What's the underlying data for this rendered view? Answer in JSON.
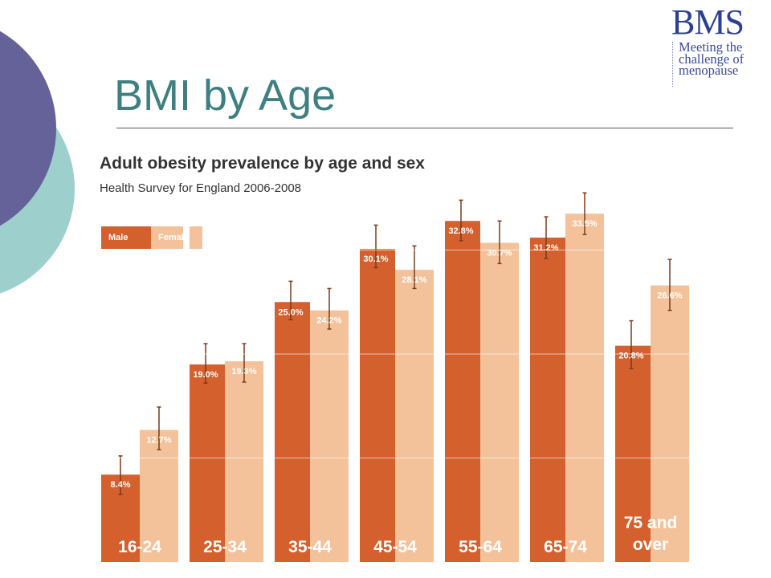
{
  "slide": {
    "title": "BMI by Age"
  },
  "logo": {
    "text": "BMS",
    "tagline": [
      "Meeting the",
      "challenge of",
      "menopause"
    ]
  },
  "colors": {
    "title": "#3f7f82",
    "male": "#d4602d",
    "female": "#f3c29b",
    "error_bar": "#7a3a18",
    "decor_purple": "#656199",
    "decor_teal": "#9dcfcd"
  },
  "chart_data": {
    "type": "bar",
    "title": "Adult obesity prevalence by age and sex",
    "subtitle": "Health Survey for England 2006-2008",
    "legend": [
      "Male",
      "Female"
    ],
    "legend_position": "top-left",
    "categories": [
      "16-24",
      "25-34",
      "35-44",
      "45-54",
      "55-64",
      "65-74",
      "75 and over"
    ],
    "series": [
      {
        "name": "Male",
        "values": [
          8.4,
          19.0,
          25.0,
          30.1,
          32.8,
          31.2,
          20.8
        ],
        "labels": [
          "8.4%",
          "19.0%",
          "25.0%",
          "30.1%",
          "32.8%",
          "31.2%",
          "20.8%"
        ],
        "error_low": [
          6.5,
          17.2,
          23.3,
          28.3,
          30.9,
          29.2,
          18.6
        ],
        "error_high": [
          10.2,
          21.0,
          27.0,
          32.4,
          34.8,
          33.2,
          23.2
        ]
      },
      {
        "name": "Female",
        "values": [
          12.7,
          19.3,
          24.2,
          28.1,
          30.7,
          33.5,
          26.6
        ],
        "labels": [
          "12.7%",
          "19.3%",
          "24.2%",
          "28.1%",
          "30.7%",
          "33.5%",
          "26.6%"
        ],
        "error_low": [
          10.8,
          17.3,
          22.4,
          26.3,
          28.7,
          31.5,
          24.2
        ],
        "error_high": [
          14.9,
          21.0,
          26.3,
          30.4,
          32.8,
          35.5,
          29.1
        ]
      }
    ],
    "ylim": [
      0,
      37
    ],
    "gridlines": [
      10,
      20,
      30
    ],
    "grid": true,
    "xlabel": "",
    "ylabel": ""
  }
}
